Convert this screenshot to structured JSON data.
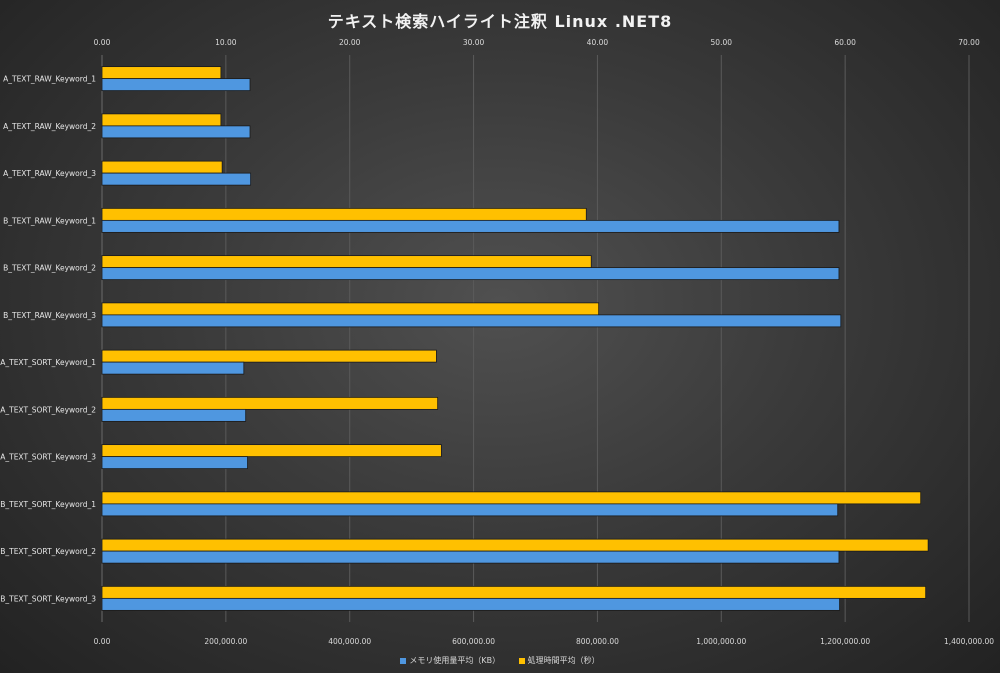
{
  "chart_data": {
    "type": "bar",
    "orientation": "horizontal",
    "title": "テキスト検索ハイライト注釈 Linux .NET8",
    "categories": [
      "A_TEXT_RAW_Keyword_1",
      "A_TEXT_RAW_Keyword_2",
      "A_TEXT_RAW_Keyword_3",
      "B_TEXT_RAW_Keyword_1",
      "B_TEXT_RAW_Keyword_2",
      "B_TEXT_RAW_Keyword_3",
      "A_TEXT_SORT_Keyword_1",
      "A_TEXT_SORT_Keyword_2",
      "A_TEXT_SORT_Keyword_3",
      "B_TEXT_SORT_Keyword_1",
      "B_TEXT_SORT_Keyword_2",
      "B_TEXT_SORT_Keyword_3"
    ],
    "series": [
      {
        "name": "メモリ使用量平均（KB）",
        "axis": "bottom",
        "color": "#4f97e0",
        "values": [
          239000,
          239000,
          240000,
          1190000,
          1190000,
          1193000,
          229000,
          232000,
          235000,
          1188000,
          1190000,
          1191000
        ]
      },
      {
        "name": "処理時間平均（秒）",
        "axis": "top",
        "color": "#ffc000",
        "values": [
          9.6,
          9.6,
          9.7,
          39.1,
          39.5,
          40.1,
          27.0,
          27.1,
          27.4,
          66.1,
          66.7,
          66.5
        ]
      }
    ],
    "top_axis": {
      "range": [
        0,
        70
      ],
      "ticks": [
        "0.00",
        "10.00",
        "20.00",
        "30.00",
        "40.00",
        "50.00",
        "60.00",
        "70.00"
      ]
    },
    "bottom_axis": {
      "range": [
        0,
        1400000
      ],
      "ticks": [
        "0.00",
        "200,000.00",
        "400,000.00",
        "600,000.00",
        "800,000.00",
        "1,000,000.00",
        "1,200,000.00",
        "1,400,000.00"
      ]
    },
    "grid": true,
    "legend": "bottom"
  }
}
